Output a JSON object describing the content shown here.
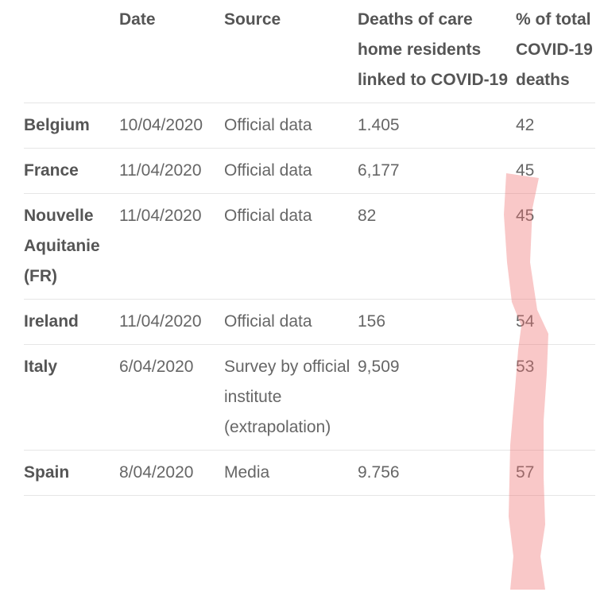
{
  "header": {
    "columns": [
      "Date",
      "Source",
      "Deaths of care home residents linked to COVID-19",
      "% of total COVID-19 deaths"
    ]
  },
  "rows": [
    [
      "Belgium",
      "10/04/2020",
      "Official data",
      "1.405",
      "42"
    ],
    [
      "France",
      "11/04/2020",
      "Official data",
      "6,177",
      "45"
    ],
    [
      "Nouvelle Aquitanie (FR)",
      "11/04/2020",
      "Official data",
      "82",
      "45"
    ],
    [
      "Ireland",
      "11/04/2020",
      "Official data",
      "156",
      "54"
    ],
    [
      "Italy",
      "6/04/2020",
      "Survey by official institute (extrapolation)",
      "9,509",
      "53"
    ],
    [
      "Spain",
      "8/04/2020",
      "Media",
      "9.756",
      "57"
    ]
  ]
}
